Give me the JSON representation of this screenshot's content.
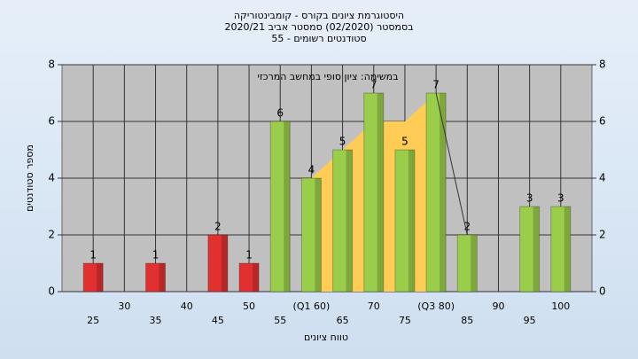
{
  "chart_data": {
    "type": "bar",
    "title": "היסטוגרמת ציונים בקורס - קומבינטוריקה",
    "subtitle": "בסמסטר  (02/2020)  סמסטר אביב 2020/21",
    "subtitle2": "55 - סטודנטים רשומים",
    "annotation": "במשימה: ציון סופי במחשב המרכזי",
    "x_label": "טווח ציונים",
    "y_label": "מספר סטודנטים",
    "categories": [
      "25",
      "30",
      "35",
      "40",
      "45",
      "50",
      "55",
      "(Q1 60)",
      "65",
      "70",
      "75",
      "(Q3 80)",
      "85",
      "90",
      "95",
      "100"
    ],
    "values": [
      1,
      0,
      1,
      0,
      2,
      1,
      6,
      4,
      5,
      7,
      5,
      7,
      2,
      0,
      3,
      3
    ],
    "colors": [
      "#e03030",
      "#e03030",
      "#e03030",
      "#e03030",
      "#e03030",
      "#e03030",
      "#9acd4a",
      "#9acd4a",
      "#9acd4a",
      "#9acd4a",
      "#9acd4a",
      "#9acd4a",
      "#9acd4a",
      "#9acd4a",
      "#9acd4a",
      "#9acd4a"
    ],
    "quartile_area": {
      "color": "#ffcc55",
      "values": [
        null,
        null,
        null,
        null,
        null,
        null,
        null,
        4,
        5,
        6,
        6,
        7,
        null,
        null,
        null,
        null
      ]
    },
    "trend_line": {
      "color": "#333333",
      "values": [
        null,
        null,
        null,
        null,
        null,
        null,
        null,
        null,
        null,
        null,
        null,
        7,
        2,
        null,
        null,
        null
      ]
    },
    "ylim": [
      0,
      8
    ],
    "yticks": [
      0,
      2,
      4,
      6,
      8
    ],
    "y2lim": [
      0,
      8
    ],
    "y2ticks": [
      0,
      2,
      4,
      6,
      8
    ],
    "grid": true
  }
}
